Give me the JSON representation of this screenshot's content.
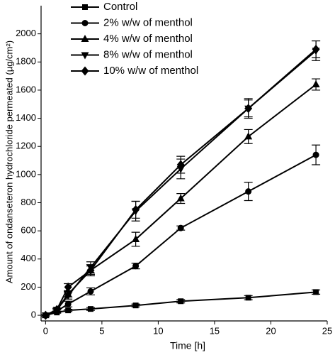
{
  "chart_data": {
    "type": "line",
    "xlabel": "Time [h]",
    "ylabel": "Amount of ondanseteron hydrochloride permeated (µg/cm²)",
    "x": [
      0,
      1,
      2,
      4,
      8,
      12,
      18,
      24
    ],
    "xlim": [
      -0.4,
      25
    ],
    "xticks": [
      0,
      5,
      10,
      15,
      20,
      25
    ],
    "ylim": [
      -40,
      2200
    ],
    "yticks": [
      0,
      200,
      400,
      600,
      800,
      1000,
      1200,
      1400,
      1600,
      1800,
      2000
    ],
    "legend": "upper left",
    "series": [
      {
        "name": "Control",
        "color": "#000000",
        "marker": "square",
        "values": [
          0,
          20,
          35,
          45,
          70,
          100,
          125,
          165
        ],
        "errors": [
          5,
          5,
          8,
          10,
          10,
          12,
          15,
          15
        ]
      },
      {
        "name": "2% w/w of menthol",
        "color": "#000000",
        "marker": "circle",
        "values": [
          0,
          30,
          80,
          170,
          350,
          620,
          880,
          1140
        ],
        "errors": [
          5,
          10,
          20,
          25,
          20,
          15,
          65,
          70
        ]
      },
      {
        "name": "4% w/w of menthol",
        "color": "#000000",
        "marker": "triangle-up",
        "values": [
          0,
          40,
          150,
          320,
          540,
          830,
          1270,
          1640
        ],
        "errors": [
          5,
          10,
          20,
          30,
          50,
          35,
          50,
          40
        ]
      },
      {
        "name": "8% w/w of menthol",
        "color": "#000000",
        "marker": "triangle-down",
        "values": [
          0,
          40,
          140,
          340,
          740,
          1040,
          1470,
          1880
        ],
        "errors": [
          5,
          10,
          25,
          40,
          70,
          70,
          70,
          70
        ]
      },
      {
        "name": "10% w/w of menthol",
        "color": "#000000",
        "marker": "diamond",
        "values": [
          0,
          40,
          200,
          320,
          750,
          1070,
          1470,
          1890
        ],
        "errors": [
          5,
          10,
          25,
          40,
          60,
          60,
          60,
          60
        ]
      }
    ]
  }
}
